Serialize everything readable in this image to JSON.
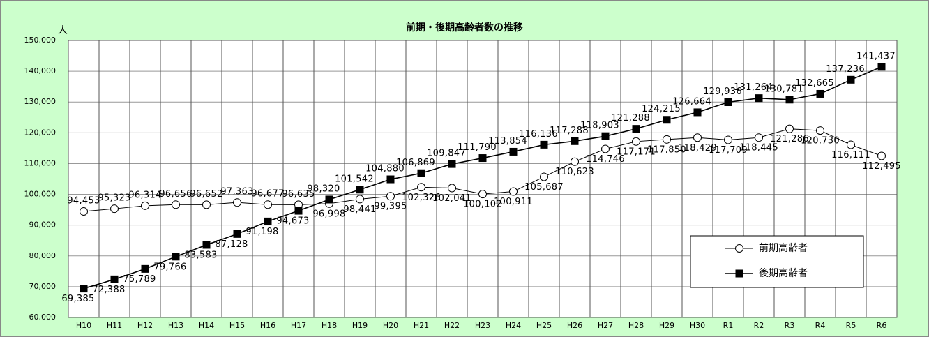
{
  "chart_data": {
    "type": "line",
    "title": "前期・後期高齢者数の推移",
    "y_label": "人",
    "categories": [
      "H10",
      "H11",
      "H12",
      "H13",
      "H14",
      "H15",
      "H16",
      "H17",
      "H18",
      "H19",
      "H20",
      "H21",
      "H22",
      "H23",
      "H24",
      "H25",
      "H26",
      "H27",
      "H28",
      "H29",
      "H30",
      "R1",
      "R2",
      "R3",
      "R4",
      "R5",
      "R6"
    ],
    "series": [
      {
        "name": "前期高齢者",
        "color": "#000000",
        "marker": "circle",
        "values": [
          94453,
          95323,
          96314,
          96656,
          96652,
          97363,
          96677,
          96635,
          96998,
          98441,
          99395,
          102326,
          102041,
          100102,
          100911,
          105687,
          110623,
          114746,
          117171,
          117850,
          118429,
          117709,
          118445,
          121286,
          120730,
          116111,
          112495
        ],
        "value_labels": [
          "94,453",
          "95,323",
          "96,314",
          "96,656",
          "96,652",
          "97,363",
          "96,677",
          "96,635",
          "96,998",
          "98,441",
          "99,395",
          "102,326",
          "102,041",
          "100,102",
          "100,911",
          "105,687",
          "110,623",
          "114,746",
          "117,171",
          "117,850",
          "118,429",
          "117,709",
          "118,445",
          "121,286",
          "120,730",
          "116,111",
          "112,495"
        ]
      },
      {
        "name": "後期高齢者",
        "color": "#000000",
        "marker": "square",
        "values": [
          69385,
          72388,
          75789,
          79766,
          83583,
          87128,
          91198,
          94673,
          98320,
          101542,
          104880,
          106869,
          109847,
          111790,
          113854,
          116136,
          117288,
          118903,
          121288,
          124215,
          126664,
          129936,
          131264,
          130781,
          132665,
          137236,
          141437
        ],
        "value_labels": [
          "69,385",
          "72,388",
          "75,789",
          "79,766",
          "83,583",
          "87,128",
          "91,198",
          "94,673",
          "98,320",
          "101,542",
          "104,880",
          "106,869",
          "109,847",
          "111,790",
          "113,854",
          "116,136",
          "117,288",
          "118,903",
          "121,288",
          "124,215",
          "126,664",
          "129,936",
          "131,264",
          "130,781",
          "132,665",
          "137,236",
          "141,437"
        ]
      }
    ],
    "ylim": [
      60000,
      150000
    ],
    "yticks": [
      {
        "value": 60000,
        "label": "60,000"
      },
      {
        "value": 70000,
        "label": "70,000"
      },
      {
        "value": 80000,
        "label": "80,000"
      },
      {
        "value": 90000,
        "label": "90,000"
      },
      {
        "value": 100000,
        "label": "100,000"
      },
      {
        "value": 110000,
        "label": "110,000"
      },
      {
        "value": 120000,
        "label": "120,000"
      },
      {
        "value": 130000,
        "label": "130,000"
      },
      {
        "value": 140000,
        "label": "140,000"
      },
      {
        "value": 150000,
        "label": "150,000"
      }
    ],
    "grid": true,
    "legend": "lower right"
  }
}
